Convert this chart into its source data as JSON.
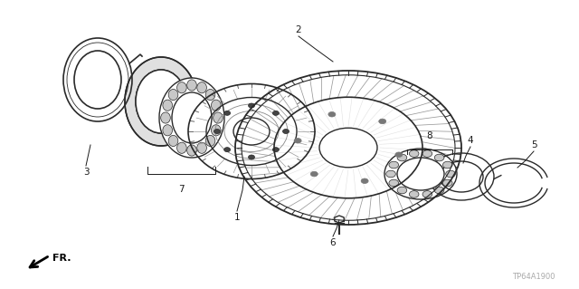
{
  "bg_color": "#ffffff",
  "text_color": "#1a1a1a",
  "line_color": "#2a2a2a",
  "fig_width": 6.4,
  "fig_height": 3.19,
  "dpi": 100,
  "watermark": "TP64A1900",
  "fr_label": "FR."
}
